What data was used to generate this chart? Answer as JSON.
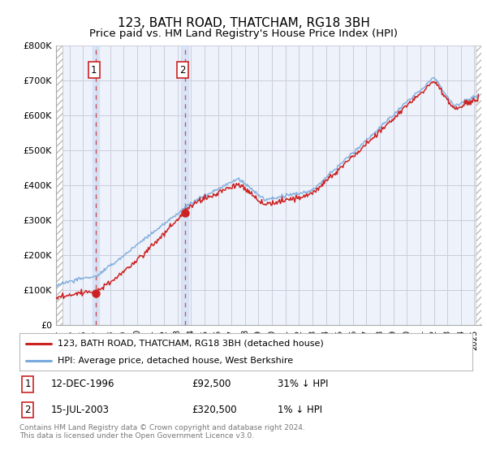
{
  "title": "123, BATH ROAD, THATCHAM, RG18 3BH",
  "subtitle": "Price paid vs. HM Land Registry's House Price Index (HPI)",
  "ylabel_ticks": [
    "£0",
    "£100K",
    "£200K",
    "£300K",
    "£400K",
    "£500K",
    "£600K",
    "£700K",
    "£800K"
  ],
  "ytick_values": [
    0,
    100000,
    200000,
    300000,
    400000,
    500000,
    600000,
    700000,
    800000
  ],
  "ylim": [
    0,
    800000
  ],
  "xlim_start": 1994.0,
  "xlim_end": 2025.5,
  "sale1_date": 1996.95,
  "sale1_price": 92500,
  "sale2_date": 2003.54,
  "sale2_price": 320500,
  "hpi_color": "#7aaadd",
  "price_color": "#cc2222",
  "marker_color": "#cc2222",
  "legend_line1": "123, BATH ROAD, THATCHAM, RG18 3BH (detached house)",
  "legend_line2": "HPI: Average price, detached house, West Berkshire",
  "copyright": "Contains HM Land Registry data © Crown copyright and database right 2024.\nThis data is licensed under the Open Government Licence v3.0.",
  "background_color": "#ffffff",
  "plot_bg_color": "#eef2fa",
  "grid_color": "#ccccdd",
  "title_fontsize": 11,
  "subtitle_fontsize": 9.5
}
